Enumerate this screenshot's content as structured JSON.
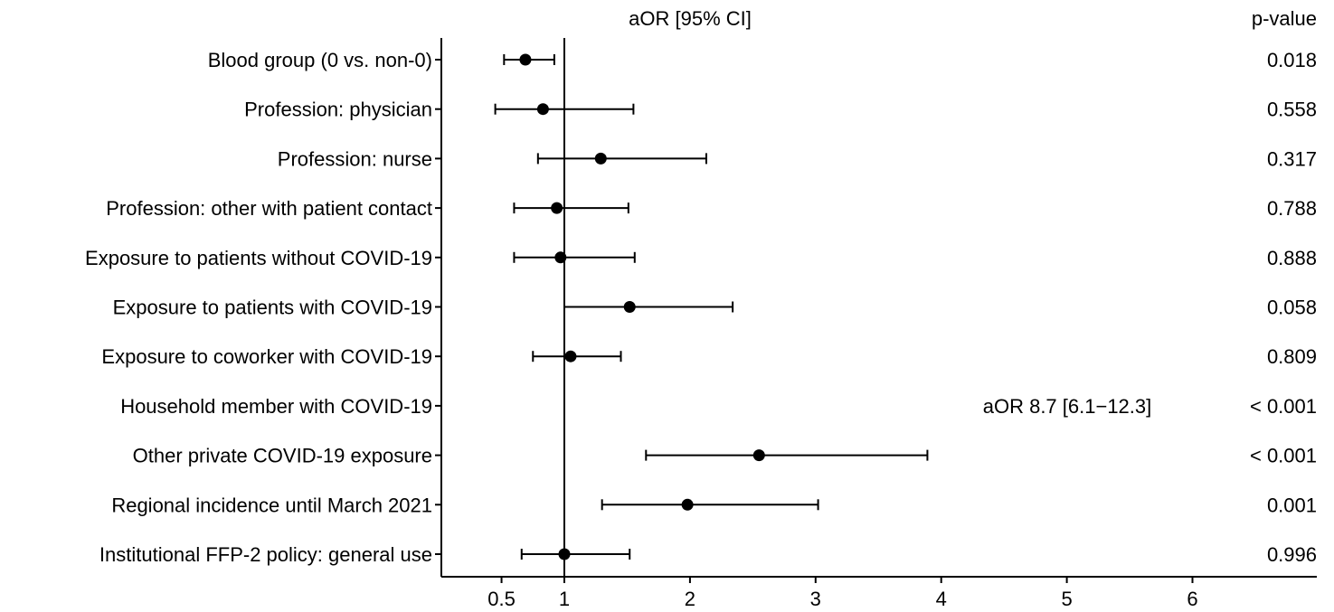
{
  "chart_data": {
    "type": "forest",
    "title": "aOR [95% CI]",
    "pvalue_header": "p-value",
    "xlabel": "",
    "ylabel": "",
    "reference_line": 1,
    "xlim": [
      0.5,
      6
    ],
    "xticks": [
      {
        "value": 0.5,
        "label": "0.5"
      },
      {
        "value": 1,
        "label": "1"
      },
      {
        "value": 2,
        "label": "2"
      },
      {
        "value": 3,
        "label": "3"
      },
      {
        "value": 4,
        "label": "4"
      },
      {
        "value": 5,
        "label": "5"
      },
      {
        "value": 6,
        "label": "6"
      }
    ],
    "rows": [
      {
        "label": "Blood group (0 vs. non-0)",
        "aor": 0.69,
        "lo": 0.52,
        "hi": 0.92,
        "p": "0.018"
      },
      {
        "label": "Profession: physician",
        "aor": 0.83,
        "lo": 0.45,
        "hi": 1.55,
        "p": "0.558"
      },
      {
        "label": "Profession: nurse",
        "aor": 1.29,
        "lo": 0.79,
        "hi": 2.13,
        "p": "0.317"
      },
      {
        "label": "Profession: other with patient contact",
        "aor": 0.94,
        "lo": 0.6,
        "hi": 1.51,
        "p": "0.788"
      },
      {
        "label": "Exposure to patients without COVID-19",
        "aor": 0.97,
        "lo": 0.6,
        "hi": 1.56,
        "p": "0.888"
      },
      {
        "label": "Exposure to patients with COVID-19",
        "aor": 1.52,
        "lo": 1.0,
        "hi": 2.34,
        "p": "0.058"
      },
      {
        "label": "Exposure to coworker with COVID-19",
        "aor": 1.05,
        "lo": 0.75,
        "hi": 1.45,
        "p": "0.809"
      },
      {
        "label": "Household member with COVID-19",
        "aor": null,
        "lo": null,
        "hi": null,
        "p": "< 0.001",
        "annotation": "aOR 8.7 [6.1−12.3]"
      },
      {
        "label": "Other private COVID-19 exposure",
        "aor": 2.55,
        "lo": 1.65,
        "hi": 3.89,
        "p": "< 0.001"
      },
      {
        "label": "Regional incidence until March 2021",
        "aor": 1.98,
        "lo": 1.3,
        "hi": 3.02,
        "p": "0.001"
      },
      {
        "label": "Institutional FFP-2 policy: general use",
        "aor": 1.0,
        "lo": 0.66,
        "hi": 1.52,
        "p": "0.996"
      }
    ]
  }
}
